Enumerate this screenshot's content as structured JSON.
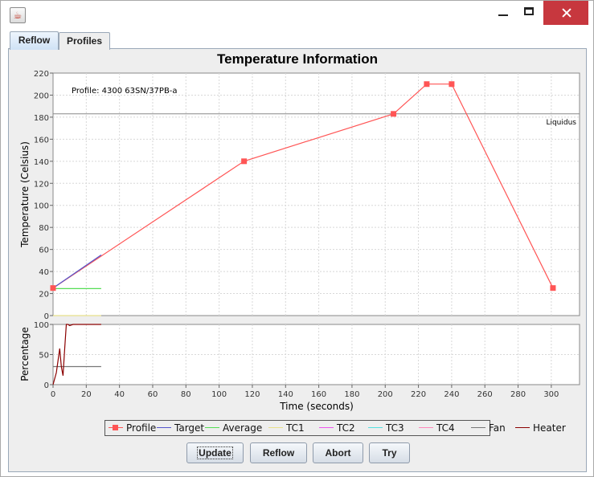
{
  "window": {
    "app_icon": "java-cup-icon",
    "controls": [
      "minimize-icon",
      "maximize-icon",
      "close-icon"
    ],
    "close_color": "#c7373e"
  },
  "tabs": [
    {
      "label": "Reflow",
      "selected": true
    },
    {
      "label": "Profiles",
      "selected": false
    }
  ],
  "chart_title": "Temperature Information",
  "legend": [
    {
      "label": "Profile",
      "color": "#ff5555",
      "marker": "square"
    },
    {
      "label": "Target",
      "color": "#5555cc"
    },
    {
      "label": "Average",
      "color": "#55dd55"
    },
    {
      "label": "TC1",
      "color": "#e8e08a"
    },
    {
      "label": "TC2",
      "color": "#ee55ee"
    },
    {
      "label": "TC3",
      "color": "#55e0e0"
    },
    {
      "label": "TC4",
      "color": "#ff88bb"
    },
    {
      "label": "Fan",
      "color": "#777777"
    },
    {
      "label": "Heater",
      "color": "#8b0000"
    }
  ],
  "buttons": {
    "update": "Update",
    "reflow": "Reflow",
    "abort": "Abort",
    "try": "Try"
  },
  "chart_data": [
    {
      "type": "line",
      "title": "Temperature Information",
      "ylabel": "Temperature (Celsius)",
      "xlim": [
        0,
        317
      ],
      "ylim": [
        0,
        220
      ],
      "yticks": [
        0,
        20,
        40,
        60,
        80,
        100,
        120,
        140,
        160,
        180,
        200,
        220
      ],
      "grid": true,
      "annotations": {
        "profile_text": "Profile: 4300 63SN/37PB-a",
        "liquidus_label": "Liquidus",
        "liquidus_value": 183
      },
      "series": [
        {
          "name": "Profile",
          "x": [
            0,
            115,
            205,
            225,
            240,
            301
          ],
          "y": [
            25,
            140,
            183,
            210,
            210,
            25
          ]
        },
        {
          "name": "Target",
          "x": [
            0,
            29
          ],
          "y": [
            25,
            55
          ]
        },
        {
          "name": "Average",
          "x": [
            0,
            29
          ],
          "y": [
            24.5,
            24.5
          ]
        },
        {
          "name": "TC1",
          "x": [
            0,
            29
          ],
          "y": [
            0,
            0
          ]
        }
      ]
    },
    {
      "type": "line",
      "ylabel": "Percentage",
      "xlabel": "Time (seconds)",
      "xlim": [
        0,
        317
      ],
      "ylim": [
        0,
        100
      ],
      "yticks": [
        0,
        50,
        100
      ],
      "xticks": [
        0,
        20,
        40,
        60,
        80,
        100,
        120,
        140,
        160,
        180,
        200,
        220,
        240,
        260,
        280,
        300
      ],
      "grid": true,
      "series": [
        {
          "name": "Fan",
          "x": [
            0,
            29
          ],
          "y": [
            30,
            30
          ]
        },
        {
          "name": "Heater",
          "x": [
            0,
            2,
            4,
            5,
            6,
            7,
            8,
            9,
            10,
            12,
            29
          ],
          "y": [
            0,
            20,
            60,
            30,
            15,
            60,
            100,
            100,
            98,
            100,
            100
          ]
        }
      ]
    }
  ]
}
